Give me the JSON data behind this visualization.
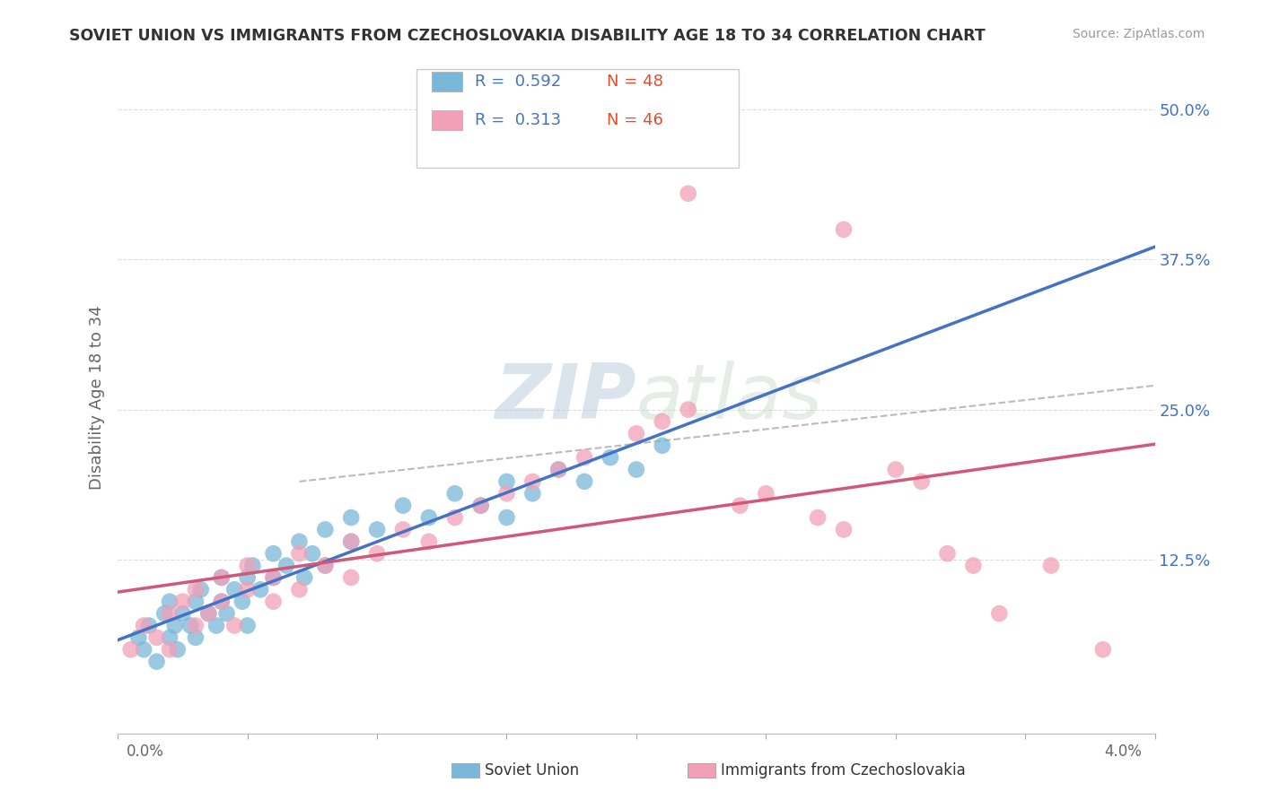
{
  "title": "SOVIET UNION VS IMMIGRANTS FROM CZECHOSLOVAKIA DISABILITY AGE 18 TO 34 CORRELATION CHART",
  "source": "Source: ZipAtlas.com",
  "ylabel": "Disability Age 18 to 34",
  "ytick_labels": [
    "12.5%",
    "25.0%",
    "37.5%",
    "50.0%"
  ],
  "ytick_values": [
    0.125,
    0.25,
    0.375,
    0.5
  ],
  "xmin": 0.0,
  "xmax": 0.04,
  "ymin": -0.02,
  "ymax": 0.54,
  "legend_r1_val": "0.592",
  "legend_n1_val": "48",
  "legend_r2_val": "0.313",
  "legend_n2_val": "46",
  "R_blue": 0.592,
  "N_blue": 48,
  "R_pink": 0.313,
  "N_pink": 46,
  "watermark_zip": "ZIP",
  "watermark_atlas": "atlas",
  "blue_scatter_color": "#7ab8d9",
  "pink_scatter_color": "#f2a0b8",
  "blue_line_color": "#4472c4",
  "pink_line_color": "#d05878",
  "legend_r_color": "#4472c4",
  "legend_n_color": "#e05030",
  "title_color": "#333333",
  "axis_label_color": "#666666",
  "grid_color": "#dddddd",
  "legend_label1": "Soviet Union",
  "legend_label2": "Immigrants from Czechoslovakia",
  "blue_x": [
    0.0008,
    0.001,
    0.0012,
    0.0015,
    0.0018,
    0.002,
    0.002,
    0.0022,
    0.0023,
    0.0025,
    0.0028,
    0.003,
    0.003,
    0.0032,
    0.0035,
    0.0038,
    0.004,
    0.004,
    0.0042,
    0.0045,
    0.0048,
    0.005,
    0.005,
    0.0052,
    0.0055,
    0.006,
    0.006,
    0.0065,
    0.007,
    0.0072,
    0.0075,
    0.008,
    0.008,
    0.009,
    0.009,
    0.01,
    0.011,
    0.012,
    0.013,
    0.014,
    0.015,
    0.015,
    0.016,
    0.017,
    0.018,
    0.019,
    0.02,
    0.021
  ],
  "blue_y": [
    0.06,
    0.05,
    0.07,
    0.04,
    0.08,
    0.06,
    0.09,
    0.07,
    0.05,
    0.08,
    0.07,
    0.09,
    0.06,
    0.1,
    0.08,
    0.07,
    0.09,
    0.11,
    0.08,
    0.1,
    0.09,
    0.11,
    0.07,
    0.12,
    0.1,
    0.11,
    0.13,
    0.12,
    0.14,
    0.11,
    0.13,
    0.15,
    0.12,
    0.14,
    0.16,
    0.15,
    0.17,
    0.16,
    0.18,
    0.17,
    0.19,
    0.16,
    0.18,
    0.2,
    0.19,
    0.21,
    0.2,
    0.22
  ],
  "pink_x": [
    0.0005,
    0.001,
    0.0015,
    0.002,
    0.002,
    0.0025,
    0.003,
    0.003,
    0.0035,
    0.004,
    0.004,
    0.0045,
    0.005,
    0.005,
    0.006,
    0.006,
    0.007,
    0.007,
    0.008,
    0.009,
    0.009,
    0.01,
    0.011,
    0.012,
    0.013,
    0.014,
    0.015,
    0.016,
    0.017,
    0.018,
    0.02,
    0.021,
    0.022,
    0.024,
    0.025,
    0.027,
    0.028,
    0.03,
    0.031,
    0.032,
    0.033,
    0.034,
    0.036,
    0.038,
    0.022,
    0.028
  ],
  "pink_y": [
    0.05,
    0.07,
    0.06,
    0.08,
    0.05,
    0.09,
    0.07,
    0.1,
    0.08,
    0.09,
    0.11,
    0.07,
    0.1,
    0.12,
    0.09,
    0.11,
    0.1,
    0.13,
    0.12,
    0.11,
    0.14,
    0.13,
    0.15,
    0.14,
    0.16,
    0.17,
    0.18,
    0.19,
    0.2,
    0.21,
    0.23,
    0.24,
    0.25,
    0.17,
    0.18,
    0.16,
    0.15,
    0.2,
    0.19,
    0.13,
    0.12,
    0.08,
    0.12,
    0.05,
    0.43,
    0.4
  ]
}
